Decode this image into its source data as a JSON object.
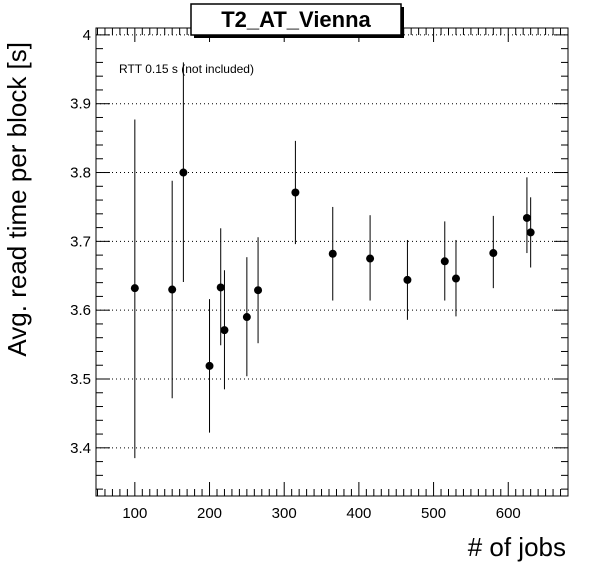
{
  "chart_data": {
    "type": "scatter",
    "title": "T2_AT_Vienna",
    "xlabel": "# of jobs",
    "ylabel": "Avg. read time per block [s]",
    "annotation": "RTT 0.15 s (not included)",
    "xlim": [
      48,
      680
    ],
    "ylim": [
      3.33,
      4.01
    ],
    "x_ticks": [
      100,
      200,
      300,
      400,
      500,
      600
    ],
    "y_ticks": [
      3.4,
      3.5,
      3.6,
      3.7,
      3.8,
      3.9,
      4
    ],
    "x_tick_labels": [
      "100",
      "200",
      "300",
      "400",
      "500",
      "600"
    ],
    "y_tick_labels": [
      "3.4",
      "3.5",
      "3.6",
      "3.7",
      "3.8",
      "3.9",
      "4"
    ],
    "grid": "horizontal dotted",
    "points": [
      {
        "x": 100,
        "y": 3.632,
        "ylo": 3.385,
        "yhi": 3.877
      },
      {
        "x": 150,
        "y": 3.63,
        "ylo": 3.472,
        "yhi": 3.788
      },
      {
        "x": 165,
        "y": 3.8,
        "ylo": 3.641,
        "yhi": 3.96
      },
      {
        "x": 200,
        "y": 3.519,
        "ylo": 3.422,
        "yhi": 3.616
      },
      {
        "x": 215,
        "y": 3.633,
        "ylo": 3.549,
        "yhi": 3.719
      },
      {
        "x": 220,
        "y": 3.571,
        "ylo": 3.485,
        "yhi": 3.658
      },
      {
        "x": 250,
        "y": 3.59,
        "ylo": 3.504,
        "yhi": 3.677
      },
      {
        "x": 265,
        "y": 3.629,
        "ylo": 3.552,
        "yhi": 3.706
      },
      {
        "x": 315,
        "y": 3.771,
        "ylo": 3.696,
        "yhi": 3.846
      },
      {
        "x": 365,
        "y": 3.682,
        "ylo": 3.614,
        "yhi": 3.75
      },
      {
        "x": 415,
        "y": 3.675,
        "ylo": 3.614,
        "yhi": 3.738
      },
      {
        "x": 465,
        "y": 3.644,
        "ylo": 3.586,
        "yhi": 3.702
      },
      {
        "x": 515,
        "y": 3.671,
        "ylo": 3.614,
        "yhi": 3.729
      },
      {
        "x": 530,
        "y": 3.646,
        "ylo": 3.591,
        "yhi": 3.702
      },
      {
        "x": 580,
        "y": 3.683,
        "ylo": 3.632,
        "yhi": 3.737
      },
      {
        "x": 625,
        "y": 3.734,
        "ylo": 3.683,
        "yhi": 3.793
      },
      {
        "x": 630,
        "y": 3.713,
        "ylo": 3.662,
        "yhi": 3.764
      }
    ]
  }
}
